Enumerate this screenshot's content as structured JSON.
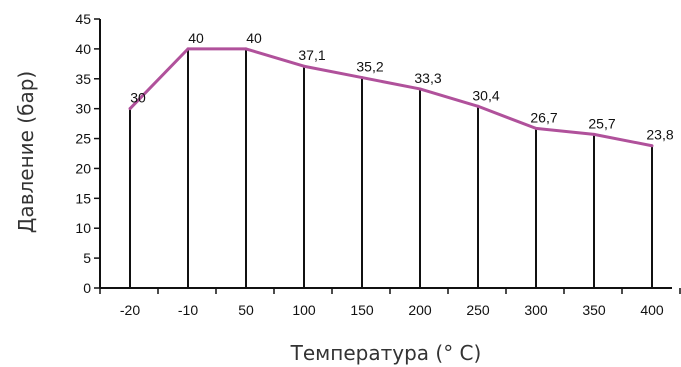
{
  "chart_data": {
    "type": "line",
    "title": "",
    "xlabel": "Температура (° C)",
    "ylabel": "Давление (бар)",
    "categories": [
      "-20",
      "-10",
      "50",
      "100",
      "150",
      "200",
      "250",
      "300",
      "350",
      "400"
    ],
    "series": [
      {
        "values": [
          30,
          40,
          40,
          37.1,
          35.2,
          33.3,
          30.4,
          26.7,
          25.7,
          23.8
        ]
      }
    ],
    "data_labels": [
      "30",
      "40",
      "40",
      "37,1",
      "35,2",
      "33,3",
      "30,4",
      "26,7",
      "25,7",
      "23,8"
    ],
    "y_ticks": [
      "0",
      "5",
      "10",
      "15",
      "20",
      "25",
      "30",
      "35",
      "40",
      "45"
    ],
    "ylim": [
      0,
      45
    ],
    "grid": false,
    "drop_lines": true,
    "colors": {
      "line": "#b0519b",
      "axis": "#111111",
      "drop_line": "#111111"
    }
  }
}
